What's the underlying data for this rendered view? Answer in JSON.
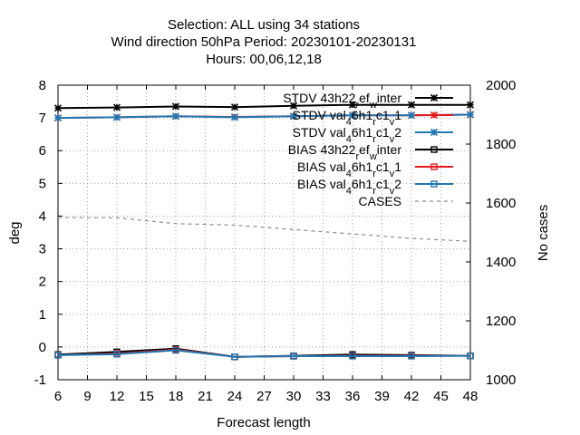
{
  "chart_data": {
    "type": "line",
    "title_lines": [
      "Selection: ALL using    34 stations",
      "Wind direction 50hPa   Period: 20230101-20230131",
      "Hours:  00,06,12,18"
    ],
    "xlabel": "Forecast length",
    "ylabel": "deg",
    "y2label": "No cases",
    "xlim": [
      6,
      48
    ],
    "ylim": [
      -1,
      8
    ],
    "y2lim": [
      1000,
      2000
    ],
    "x_ticks": [
      "6",
      "9",
      "12",
      "15",
      "18",
      "21",
      "24",
      "27",
      "30",
      "33",
      "36",
      "39",
      "42",
      "45",
      "48"
    ],
    "y_ticks": [
      "-1",
      "0",
      "1",
      "2",
      "3",
      "4",
      "5",
      "6",
      "7",
      "8"
    ],
    "y2_ticks": [
      "1000",
      "1200",
      "1400",
      "1600",
      "1800",
      "2000"
    ],
    "grid": true,
    "legend_position": "top-right",
    "x": [
      6,
      12,
      18,
      24,
      30,
      36,
      42,
      48
    ],
    "series": [
      {
        "name": "STDV 43h22_ref_winter",
        "legend": [
          "STDV 43h22",
          "r",
          "ef",
          "w",
          "inter"
        ],
        "axis": "y",
        "color": "#000000",
        "marker": "star",
        "dash": "",
        "y": [
          7.3,
          7.32,
          7.35,
          7.33,
          7.37,
          7.4,
          7.4,
          7.4
        ]
      },
      {
        "name": "STDV val_46h1_rc1_v1",
        "legend": [
          "STDV val",
          "4",
          "6h1",
          "r",
          "c1",
          "v",
          "1"
        ],
        "axis": "y",
        "color": "#e41a1c",
        "marker": "star",
        "dash": "",
        "y": [
          7.0,
          7.02,
          7.05,
          7.03,
          7.05,
          7.08,
          7.08,
          7.1
        ]
      },
      {
        "name": "STDV val_46h1_rc1_v2",
        "legend": [
          "STDV val",
          "4",
          "6h1",
          "r",
          "c1",
          "v",
          "2"
        ],
        "axis": "y",
        "color": "#1f78b4",
        "marker": "star",
        "dash": "",
        "y": [
          7.0,
          7.02,
          7.05,
          7.02,
          7.05,
          7.08,
          7.08,
          7.1
        ]
      },
      {
        "name": "BIAS 43h22_ref_winter",
        "legend": [
          "BIAS 43h22",
          "r",
          "ef",
          "w",
          "inter"
        ],
        "axis": "y",
        "color": "#000000",
        "marker": "square",
        "dash": "",
        "y": [
          -0.23,
          -0.15,
          -0.05,
          -0.3,
          -0.27,
          -0.23,
          -0.25,
          -0.27
        ]
      },
      {
        "name": "BIAS val_46h1_rc1_v1",
        "legend": [
          "BIAS val",
          "4",
          "6h1",
          "r",
          "c1",
          "v",
          "1"
        ],
        "axis": "y",
        "color": "#e41a1c",
        "marker": "square",
        "dash": "",
        "y": [
          -0.25,
          -0.2,
          -0.08,
          -0.3,
          -0.28,
          -0.27,
          -0.27,
          -0.27
        ]
      },
      {
        "name": "BIAS val_46h1_rc1_v2",
        "legend": [
          "BIAS val",
          "4",
          "6h1",
          "r",
          "c1",
          "v",
          "2"
        ],
        "axis": "y",
        "color": "#1f78b4",
        "marker": "square",
        "dash": "",
        "y": [
          -0.25,
          -0.22,
          -0.1,
          -0.3,
          -0.28,
          -0.28,
          -0.28,
          -0.27
        ]
      },
      {
        "name": "CASES",
        "legend": [
          "CASES"
        ],
        "axis": "y2",
        "color": "#8c8c8c",
        "marker": "none",
        "dash": "4 4",
        "y": [
          1550,
          1550,
          1530,
          1525,
          1510,
          1495,
          1480,
          1470
        ]
      }
    ]
  }
}
